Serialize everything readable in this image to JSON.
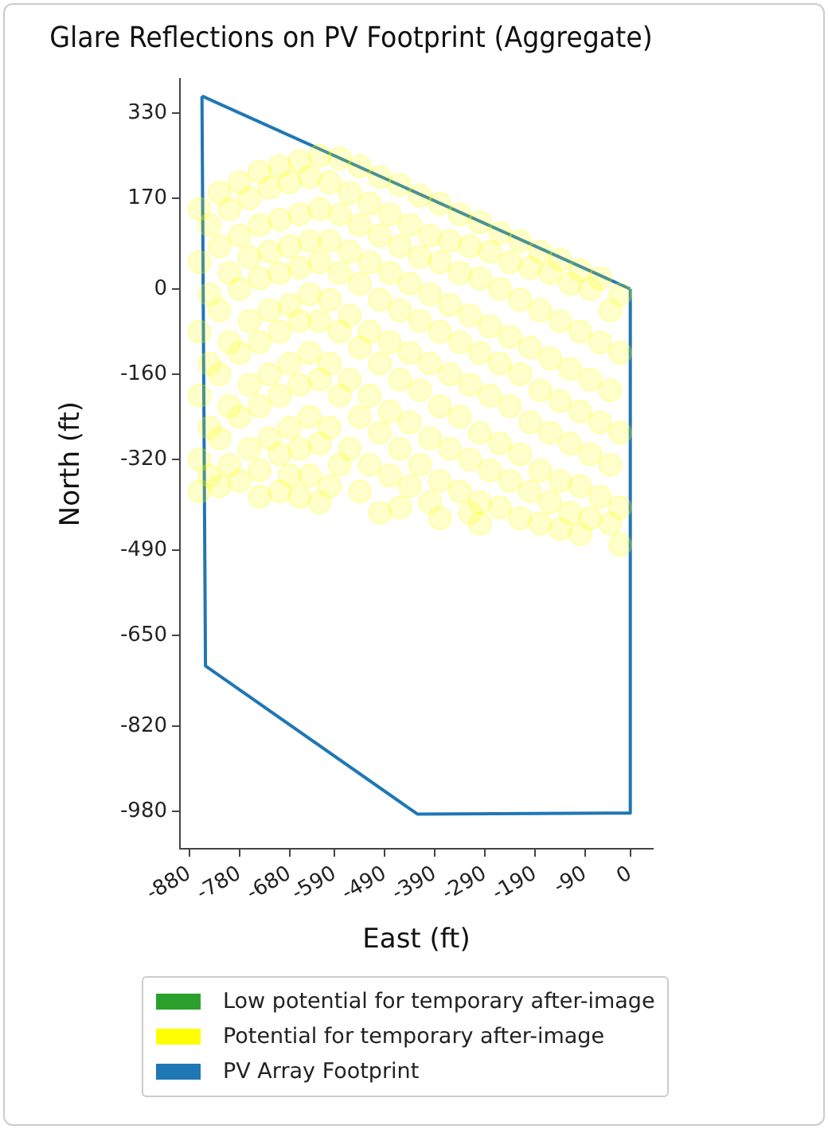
{
  "chart_data": {
    "type": "scatter",
    "title": "Glare Reflections on PV Footprint (Aggregate)",
    "xlabel": "East (ft)",
    "ylabel": "North (ft)",
    "xlim": [
      -899,
      45
    ],
    "ylim": [
      -1050,
      394
    ],
    "xticks": [
      -880,
      -780,
      -680,
      -590,
      -490,
      -390,
      -290,
      -190,
      -90,
      0
    ],
    "yticks": [
      330,
      170,
      0,
      -160,
      -320,
      -490,
      -650,
      -820,
      -980
    ],
    "grid": false,
    "legend": "bottom",
    "series": [
      {
        "name": "Low potential for temporary after-image",
        "color": "#2ca02c",
        "type": "scatter"
      },
      {
        "name": "Potential for temporary after-image",
        "color": "#ffff00",
        "type": "scatter",
        "marker": "circle",
        "x": [
          -860,
          -860,
          -860,
          -860,
          -860,
          -860,
          -820,
          -820,
          -820,
          -820,
          -820,
          -820,
          -780,
          -780,
          -780,
          -780,
          -780,
          -780,
          -740,
          -740,
          -740,
          -740,
          -740,
          -740,
          -740,
          -700,
          -700,
          -700,
          -700,
          -700,
          -700,
          -700,
          -660,
          -660,
          -660,
          -660,
          -660,
          -660,
          -660,
          -620,
          -620,
          -620,
          -620,
          -620,
          -620,
          -620,
          -580,
          -580,
          -580,
          -580,
          -580,
          -580,
          -540,
          -540,
          -540,
          -540,
          -540,
          -540,
          -500,
          -500,
          -500,
          -500,
          -500,
          -500,
          -460,
          -460,
          -460,
          -460,
          -460,
          -460,
          -420,
          -420,
          -420,
          -420,
          -420,
          -380,
          -380,
          -380,
          -380,
          -380,
          -380,
          -340,
          -340,
          -340,
          -340,
          -340,
          -300,
          -300,
          -300,
          -300,
          -300,
          -300,
          -260,
          -260,
          -260,
          -260,
          -260,
          -220,
          -220,
          -220,
          -220,
          -220,
          -180,
          -180,
          -180,
          -180,
          -180,
          -140,
          -140,
          -140,
          -140,
          -140,
          -100,
          -100,
          -100,
          -100,
          -100,
          -60,
          -60,
          -60,
          -60,
          -20,
          -20,
          -20,
          -20,
          -20,
          -840,
          -840,
          -840,
          -840,
          -840,
          -800,
          -800,
          -800,
          -800,
          -800,
          -760,
          -760,
          -760,
          -760,
          -760,
          -720,
          -720,
          -720,
          -720,
          -720,
          -680,
          -680,
          -680,
          -680,
          -680,
          -680,
          -640,
          -640,
          -640,
          -640,
          -640,
          -640,
          -600,
          -600,
          -600,
          -600,
          -600,
          -600,
          -560,
          -560,
          -560,
          -560,
          -560,
          -520,
          -520,
          -520,
          -520,
          -520,
          -480,
          -480,
          -480,
          -480,
          -480,
          -440,
          -440,
          -440,
          -440,
          -440,
          -400,
          -400,
          -400,
          -400,
          -400,
          -360,
          -360,
          -360,
          -360,
          -320,
          -320,
          -320,
          -320,
          -320,
          -280,
          -280,
          -280,
          -280,
          -240,
          -240,
          -240,
          -240,
          -200,
          -200,
          -200,
          -200,
          -160,
          -160,
          -160,
          -160,
          -120,
          -120,
          -120,
          -120,
          -80,
          -80,
          -80,
          -80,
          -40,
          -40,
          -40,
          -40
        ],
        "values": [
          150,
          50,
          -80,
          -200,
          -320,
          -380,
          180,
          80,
          -40,
          -160,
          -280,
          -370,
          200,
          100,
          0,
          -120,
          -240,
          -360,
          220,
          120,
          20,
          -100,
          -220,
          -340,
          -390,
          230,
          130,
          30,
          -80,
          -200,
          -310,
          -380,
          240,
          140,
          40,
          -60,
          -180,
          -300,
          -390,
          250,
          150,
          50,
          -60,
          -170,
          -290,
          -400,
          245,
          140,
          30,
          -80,
          -200,
          -330,
          230,
          120,
          10,
          -110,
          -240,
          -380,
          210,
          100,
          -20,
          -140,
          -270,
          -420,
          195,
          80,
          -40,
          -170,
          -300,
          -410,
          175,
          60,
          -60,
          -190,
          -330,
          160,
          50,
          -80,
          -220,
          -360,
          -430,
          140,
          30,
          -100,
          -240,
          -380,
          125,
          20,
          -120,
          -270,
          -400,
          -440,
          105,
          0,
          -140,
          -290,
          -410,
          90,
          -20,
          -160,
          -310,
          -430,
          70,
          -40,
          -190,
          -340,
          -440,
          55,
          -60,
          -210,
          -360,
          -450,
          35,
          -80,
          -230,
          -370,
          -460,
          20,
          -100,
          -250,
          -390,
          -10,
          -120,
          -270,
          -410,
          -480,
          120,
          -10,
          -140,
          -260,
          -350,
          150,
          30,
          -100,
          -220,
          -330,
          170,
          60,
          -60,
          -180,
          -300,
          190,
          70,
          -40,
          -160,
          -280,
          200,
          80,
          -30,
          -140,
          -260,
          -350,
          210,
          90,
          -10,
          -120,
          -240,
          -350,
          200,
          90,
          -20,
          -140,
          -260,
          -370,
          180,
          70,
          -50,
          -170,
          -300,
          160,
          50,
          -80,
          -200,
          -330,
          140,
          30,
          -100,
          -230,
          -350,
          120,
          10,
          -120,
          -250,
          -370,
          100,
          -10,
          -140,
          -280,
          -400,
          90,
          -30,
          -160,
          -300,
          80,
          -50,
          -180,
          -320,
          -420,
          70,
          -70,
          -200,
          -340,
          50,
          -90,
          -220,
          -360,
          40,
          -110,
          -250,
          -380,
          30,
          -130,
          -270,
          -400,
          10,
          -150,
          -290,
          -420,
          0,
          -170,
          -310,
          -430,
          -40,
          -190,
          -330,
          -440
        ]
      },
      {
        "name": "PV Array Footprint",
        "color": "#1f77b4",
        "type": "line",
        "marker": "none",
        "x": [
          -855,
          0
        ],
        "values": [
          362,
          0
        ]
      },
      {
        "color": "#1f77b4",
        "type": "line",
        "marker": "none",
        "x": [
          -855,
          -848,
          -425,
          0,
          0
        ],
        "values": [
          362,
          -707,
          -985,
          -983,
          0
        ]
      }
    ]
  }
}
